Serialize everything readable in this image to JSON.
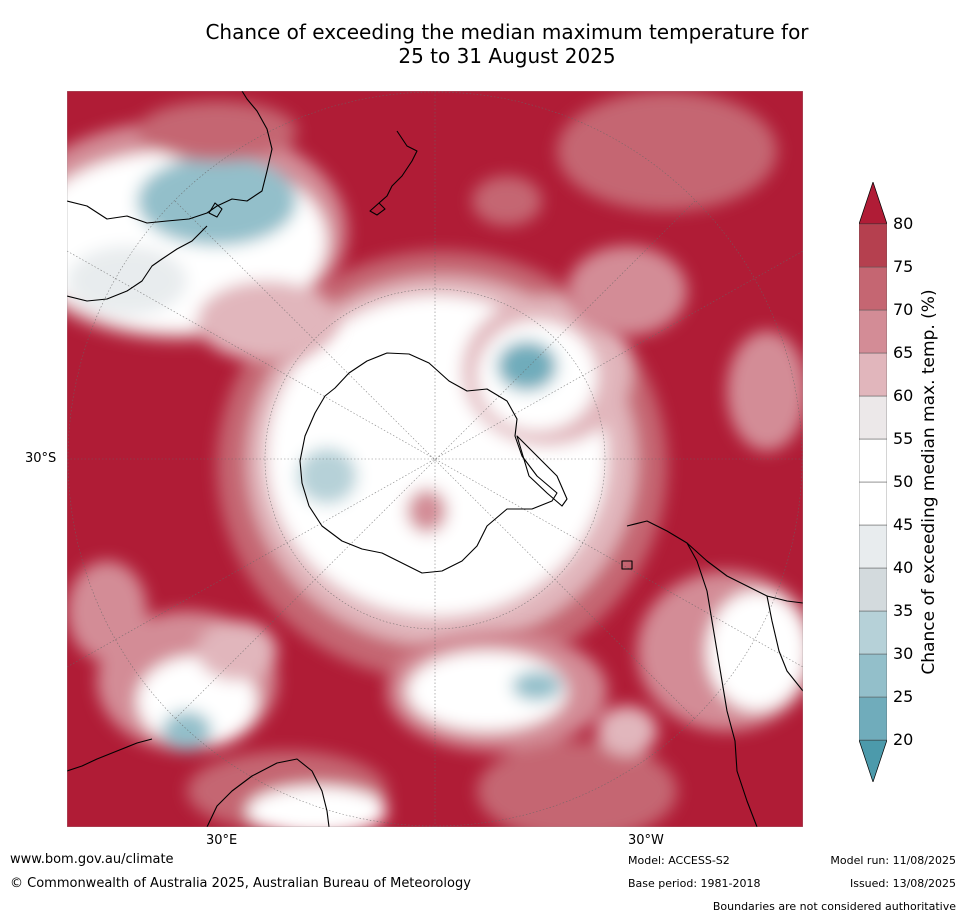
{
  "title_line1": "Chance of exceeding the median maximum temperature for",
  "title_line2": "25 to 31 August 2025",
  "map": {
    "lat_label": "30°S",
    "lon_label_left": "30°E",
    "lon_label_right": "30°W"
  },
  "colorbar": {
    "label": "Chance of exceeding median max. temp. (%)",
    "ticks": [
      "20",
      "25",
      "30",
      "35",
      "40",
      "45",
      "50",
      "55",
      "60",
      "65",
      "70",
      "75",
      "80"
    ],
    "colors": [
      "#4c9aab",
      "#70acbb",
      "#93bfca",
      "#b6d1d8",
      "#d3dadd",
      "#e8ecee",
      "#ffffff",
      "#ffffff",
      "#ece8e9",
      "#e1b6bc",
      "#d38c96",
      "#c56672",
      "#b5404f",
      "#b01c36"
    ]
  },
  "footer": {
    "website": "www.bom.gov.au/climate",
    "copyright": "© Commonwealth of Australia 2025, Australian Bureau of Meteorology",
    "model": "Model: ACCESS-S2",
    "base_period": "Base period: 1981-2018",
    "model_run": "Model run: 11/08/2025",
    "issued": "Issued: 13/08/2025",
    "disclaimer": "Boundaries are not considered authoritative"
  }
}
